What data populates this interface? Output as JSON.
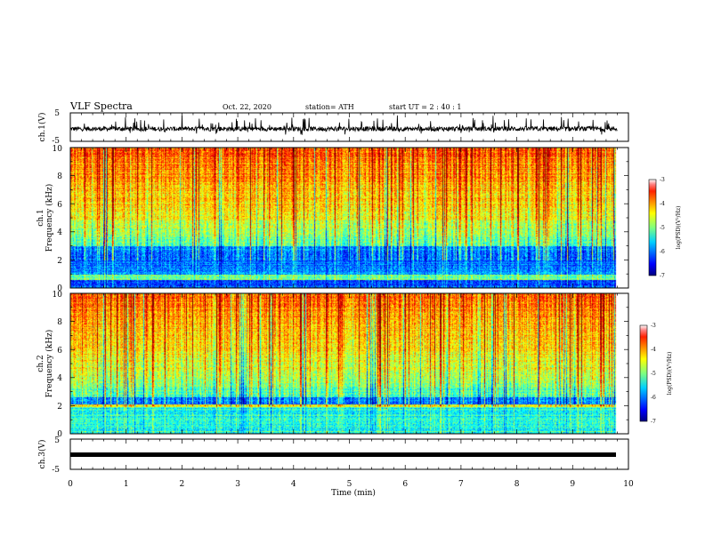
{
  "header": {
    "title": "VLF Spectra",
    "date": "Oct. 22, 2020",
    "station": "station= ATH",
    "start": "start  UT =   2 : 40 : 1"
  },
  "chart_data": [
    {
      "type": "line",
      "ylabel": "ch.1(V)",
      "ylim": [
        -5,
        5
      ],
      "yticks": [
        "5",
        "-5"
      ],
      "xlim": [
        0,
        10
      ]
    },
    {
      "type": "heatmap",
      "ylabel_line1": "ch.1",
      "ylabel_line2": "Frequency  (kHz)",
      "ylim": [
        0,
        10
      ],
      "yticks": [
        "0",
        "2",
        "4",
        "6",
        "8",
        "10"
      ],
      "xlim": [
        0,
        10
      ],
      "colorbar": {
        "label": "log(PSD)(V²/Hz)",
        "range": [
          -7,
          -3
        ],
        "ticks": [
          "-3",
          "-4",
          "-5",
          "-6",
          "-7"
        ]
      }
    },
    {
      "type": "heatmap",
      "ylabel_line1": "ch.2",
      "ylabel_line2": "Frequency  (kHz)",
      "ylim": [
        0,
        10
      ],
      "yticks": [
        "0",
        "2",
        "4",
        "6",
        "8",
        "10"
      ],
      "xlim": [
        0,
        10
      ],
      "colorbar": {
        "label": "log(PSD)(V²/Hz)",
        "range": [
          -7,
          -3
        ],
        "ticks": [
          "-3",
          "-4",
          "-5",
          "-6",
          "-7"
        ]
      }
    },
    {
      "type": "line",
      "ylabel": "ch.3(V)",
      "ylim": [
        -5,
        5
      ],
      "yticks": [
        "5",
        "-5"
      ],
      "xlim": [
        0,
        10
      ],
      "xlabel": "Time  (min)",
      "xticks": [
        "0",
        "1",
        "2",
        "3",
        "4",
        "5",
        "6",
        "7",
        "8",
        "9",
        "10"
      ]
    }
  ],
  "colors": {
    "jet_low": "#00007f",
    "jet_mid": "#7fff7f",
    "jet_high": "#ff0000"
  }
}
